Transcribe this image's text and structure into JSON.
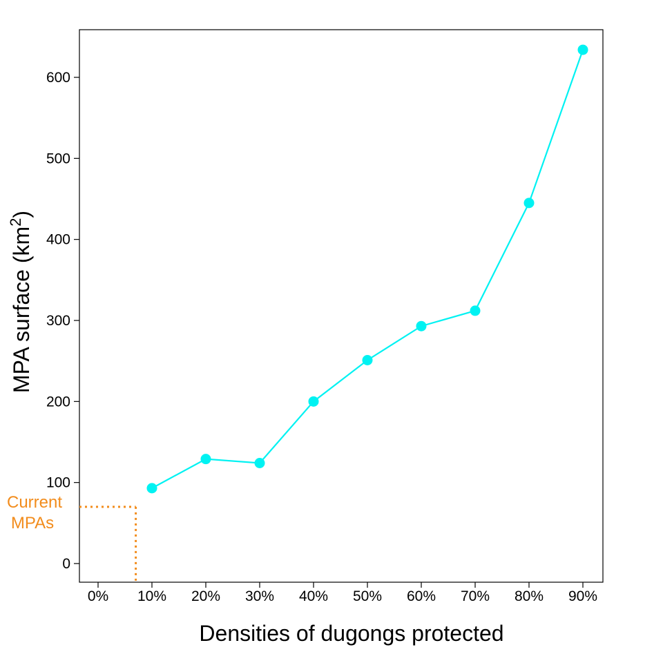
{
  "chart_data": {
    "type": "line",
    "xlabel": "Densities of dugongs protected",
    "ylabel": "MPA surface (km",
    "ylabel_superscript": "2",
    "ylabel_close": ")",
    "x_ticks": [
      "0%",
      "10%",
      "20%",
      "30%",
      "40%",
      "50%",
      "60%",
      "70%",
      "80%",
      "90%"
    ],
    "y_ticks": [
      0,
      100,
      200,
      300,
      400,
      500,
      600
    ],
    "xlim": [
      0,
      90
    ],
    "ylim": [
      -20,
      660
    ],
    "grid": false,
    "series": [
      {
        "color": "#00f2f2",
        "points": [
          {
            "x": 10,
            "y": 93
          },
          {
            "x": 20,
            "y": 129
          },
          {
            "x": 30,
            "y": 124
          },
          {
            "x": 40,
            "y": 200
          },
          {
            "x": 50,
            "y": 251
          },
          {
            "x": 60,
            "y": 293
          },
          {
            "x": 70,
            "y": 312
          },
          {
            "x": 80,
            "y": 445
          },
          {
            "x": 90,
            "y": 634
          }
        ]
      }
    ],
    "reference": {
      "label_line1": "Current",
      "label_line2": "MPAs",
      "x": 7.0,
      "y": 70,
      "color": "#f28c1c"
    }
  }
}
